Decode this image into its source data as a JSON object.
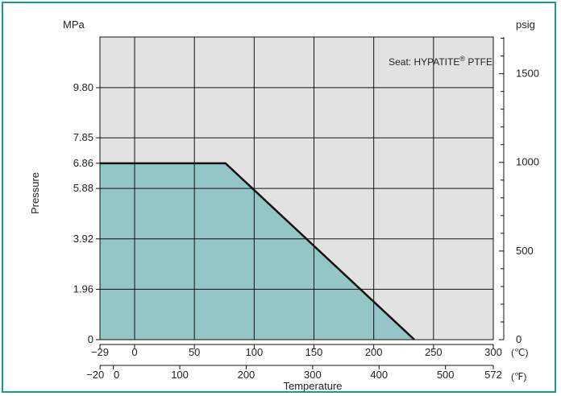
{
  "chart_data": {
    "type": "area",
    "title": "",
    "ylabel": "Pressure",
    "xlabel": "Temperature",
    "left_unit": "MPa",
    "right_unit": "psig",
    "annotation": {
      "prefix": "Seat: HYPATITE",
      "sup": "®",
      "suffix": " PTFE"
    },
    "x_c_ticks": [
      "−29",
      "0",
      "50",
      "100",
      "150",
      "200",
      "250",
      "300"
    ],
    "x_c_values": [
      -29,
      0,
      50,
      100,
      150,
      200,
      250,
      300
    ],
    "x_c_unit": "(℃)",
    "x_f_ticks": [
      "−20",
      "0",
      "100",
      "200",
      "300",
      "400",
      "500",
      "572"
    ],
    "x_f_values": [
      -20,
      0,
      100,
      200,
      300,
      400,
      500,
      572
    ],
    "x_f_unit": "(℉)",
    "y_left_ticks": [
      "0",
      "1.96",
      "3.92",
      "5.88",
      "6.86",
      "7.85",
      "9.80"
    ],
    "y_left_values": [
      0,
      1.96,
      3.92,
      5.88,
      6.86,
      7.85,
      9.8
    ],
    "y_right_ticks": [
      "0",
      "500",
      "1000",
      "1500"
    ],
    "y_right_values": [
      0,
      500,
      1000,
      1500
    ],
    "xlim": [
      -29,
      300
    ],
    "ylim": [
      0,
      11.77
    ],
    "x_grid": [
      0,
      50,
      100,
      150,
      200,
      250
    ],
    "y_grid": [
      1.96,
      3.92,
      5.88,
      7.85,
      9.8
    ],
    "series": [
      {
        "x": [
          -29,
          76,
          234
        ],
        "y": [
          6.86,
          6.86,
          0
        ]
      }
    ],
    "grid": true,
    "colors": {
      "plot_bg": "#e2e2e2",
      "fill": "#93c6c5",
      "line": "#111111",
      "frame": "#1a9a92"
    }
  }
}
